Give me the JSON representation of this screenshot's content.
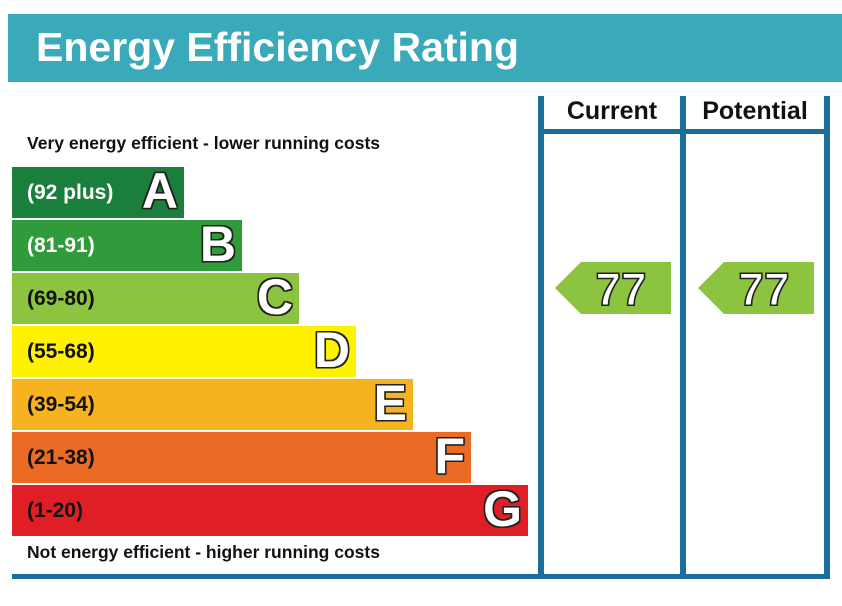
{
  "title": "Energy Efficiency Rating",
  "top_caption": "Very energy efficient - lower running costs",
  "bottom_caption": "Not energy efficient - higher running costs",
  "colors": {
    "header": "#3aa9b9",
    "frame": "#1a6e9a",
    "A": "#1a7f3c",
    "B": "#2f9b3a",
    "C": "#8cc43f",
    "D": "#fff200",
    "E": "#f6b21f",
    "F": "#eb6b24",
    "G": "#e01e26"
  },
  "chart_data": {
    "type": "bar",
    "bands": [
      {
        "letter": "A",
        "range": "(92 plus)",
        "min": 92,
        "max": null,
        "color": "#1a7f3c",
        "text_color": "#ffffff"
      },
      {
        "letter": "B",
        "range": "(81-91)",
        "min": 81,
        "max": 91,
        "color": "#2f9b3a",
        "text_color": "#ffffff"
      },
      {
        "letter": "C",
        "range": "(69-80)",
        "min": 69,
        "max": 80,
        "color": "#8cc43f",
        "text_color": "#111111"
      },
      {
        "letter": "D",
        "range": "(55-68)",
        "min": 55,
        "max": 68,
        "color": "#fff200",
        "text_color": "#111111"
      },
      {
        "letter": "E",
        "range": "(39-54)",
        "min": 39,
        "max": 54,
        "color": "#f6b21f",
        "text_color": "#111111"
      },
      {
        "letter": "F",
        "range": "(21-38)",
        "min": 21,
        "max": 38,
        "color": "#eb6b24",
        "text_color": "#111111"
      },
      {
        "letter": "G",
        "range": "(1-20)",
        "min": 1,
        "max": 20,
        "color": "#e01e26",
        "text_color": "#111111"
      }
    ],
    "columns": [
      {
        "label": "Current",
        "value": 77,
        "band": "C"
      },
      {
        "label": "Potential",
        "value": 77,
        "band": "C"
      }
    ]
  }
}
